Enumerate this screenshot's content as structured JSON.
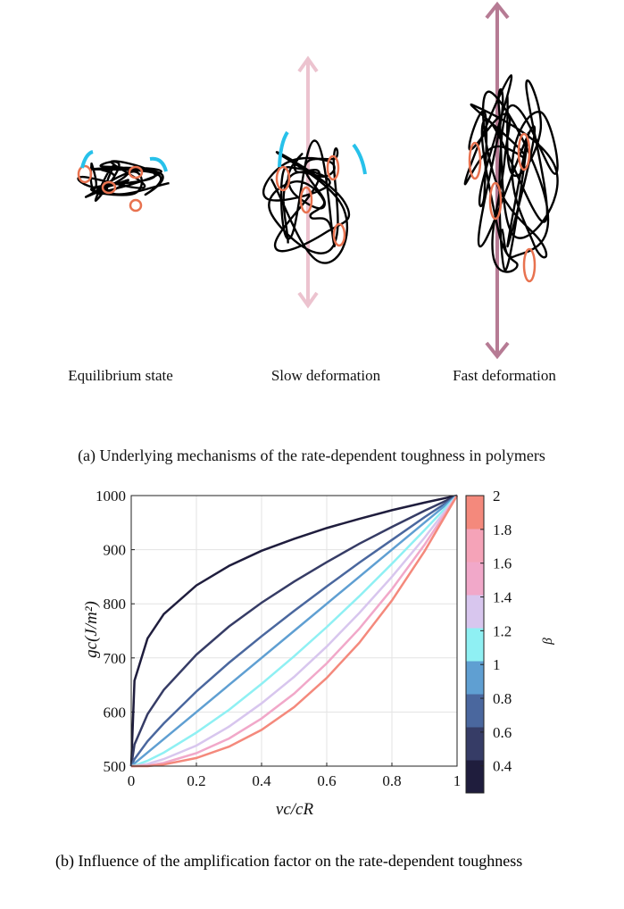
{
  "panel_a": {
    "labels": [
      "Equilibrium state",
      "Slow deformation",
      "Fast deformation"
    ],
    "caption": "(a) Underlying mechanisms of the rate-dependent toughness in polymers"
  },
  "chart_data": {
    "type": "line",
    "xlabel": "vc/cR",
    "ylabel": "gc(J/m²)",
    "x": [
      0,
      0.01,
      0.05,
      0.1,
      0.2,
      0.3,
      0.4,
      0.5,
      0.6,
      0.7,
      0.8,
      0.9,
      1
    ],
    "series": [
      {
        "color": "#1f1d3d",
        "values": [
          500,
          658,
          736,
          781,
          834,
          870,
          898,
          920,
          940,
          957,
          973,
          987,
          1000
        ]
      },
      {
        "color": "#363c66",
        "values": [
          500,
          540,
          596,
          641,
          706,
          758,
          802,
          841,
          877,
          911,
          942,
          972,
          1000
        ]
      },
      {
        "color": "#4a679e",
        "values": [
          500,
          513,
          546,
          579,
          638,
          691,
          740,
          787,
          832,
          876,
          918,
          960,
          1000
        ]
      },
      {
        "color": "#5f9fd2",
        "values": [
          500,
          505,
          525,
          550,
          600,
          650,
          700,
          750,
          800,
          850,
          900,
          950,
          1000
        ]
      },
      {
        "color": "#8ff0f3",
        "values": [
          500,
          501,
          510,
          525,
          562,
          604,
          652,
          703,
          757,
          814,
          874,
          936,
          1000
        ]
      },
      {
        "color": "#d8c6ee",
        "values": [
          500,
          500,
          504,
          513,
          538,
          573,
          616,
          665,
          721,
          783,
          850,
          922,
          1000
        ]
      },
      {
        "color": "#f1a8c9",
        "values": [
          500,
          500,
          501,
          506,
          524,
          551,
          588,
          634,
          690,
          754,
          827,
          909,
          1000
        ]
      },
      {
        "color": "#f4897c",
        "values": [
          500,
          500,
          500,
          503,
          515,
          536,
          567,
          609,
          663,
          728,
          806,
          897,
          1000
        ]
      }
    ],
    "xlim": [
      0,
      1
    ],
    "xticks": [
      0,
      0.2,
      0.4,
      0.6,
      0.8,
      1
    ],
    "ylim": [
      500,
      1000
    ],
    "yticks": [
      500,
      600,
      700,
      800,
      900,
      1000
    ],
    "grid": true,
    "colorbar": {
      "label": "β",
      "lim": [
        0.24,
        2
      ],
      "ticks": [
        0.4,
        0.6,
        0.8,
        1,
        1.2,
        1.4,
        1.6,
        1.8,
        2
      ],
      "colors": [
        "#1f1d3d",
        "#363c66",
        "#4a679e",
        "#5f9fd2",
        "#8ff0f3",
        "#d8c6ee",
        "#f1a8c9",
        "#f5a3b8",
        "#f4897c"
      ]
    },
    "caption": "(b) Influence of the amplification factor on the rate-dependent toughness"
  }
}
